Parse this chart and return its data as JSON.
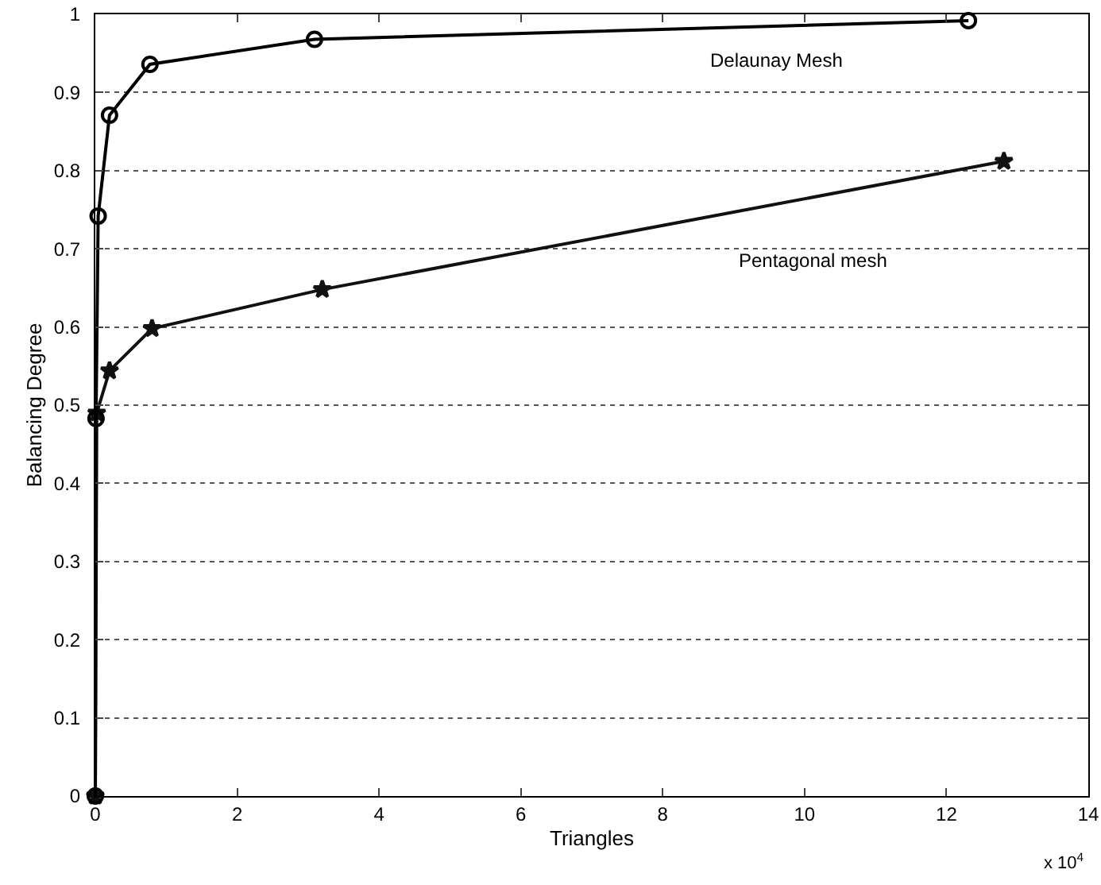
{
  "chart_data": {
    "type": "line",
    "xlabel": "Triangles",
    "ylabel": "Balancing Degree",
    "series": [
      {
        "name": "Delaunay Mesh",
        "color": "#000000",
        "marker": "circle",
        "x": [
          0,
          0.01,
          0.04,
          0.2,
          0.77,
          3.09,
          12.31
        ],
        "values": [
          0,
          0.483,
          0.742,
          0.871,
          0.936,
          0.968,
          0.992
        ]
      },
      {
        "name": "Pentagonal mesh",
        "color": "#111111",
        "marker": "star",
        "x": [
          0,
          0.02,
          0.2,
          0.8,
          3.2,
          12.81
        ],
        "values": [
          0,
          0.49,
          0.544,
          0.598,
          0.648,
          0.812
        ]
      }
    ],
    "xlim": [
      0,
      14
    ],
    "xticks": [
      0,
      2,
      4,
      6,
      8,
      10,
      12,
      14
    ],
    "ylim": [
      0,
      1
    ],
    "yticks": [
      0,
      0.1,
      0.2,
      0.3,
      0.4,
      0.5,
      0.6,
      0.7,
      0.8,
      0.9,
      1
    ],
    "grid": "y",
    "legend": false,
    "line_style": "solid",
    "annotations": [
      "x 10$^{4}$"
    ]
  }
}
